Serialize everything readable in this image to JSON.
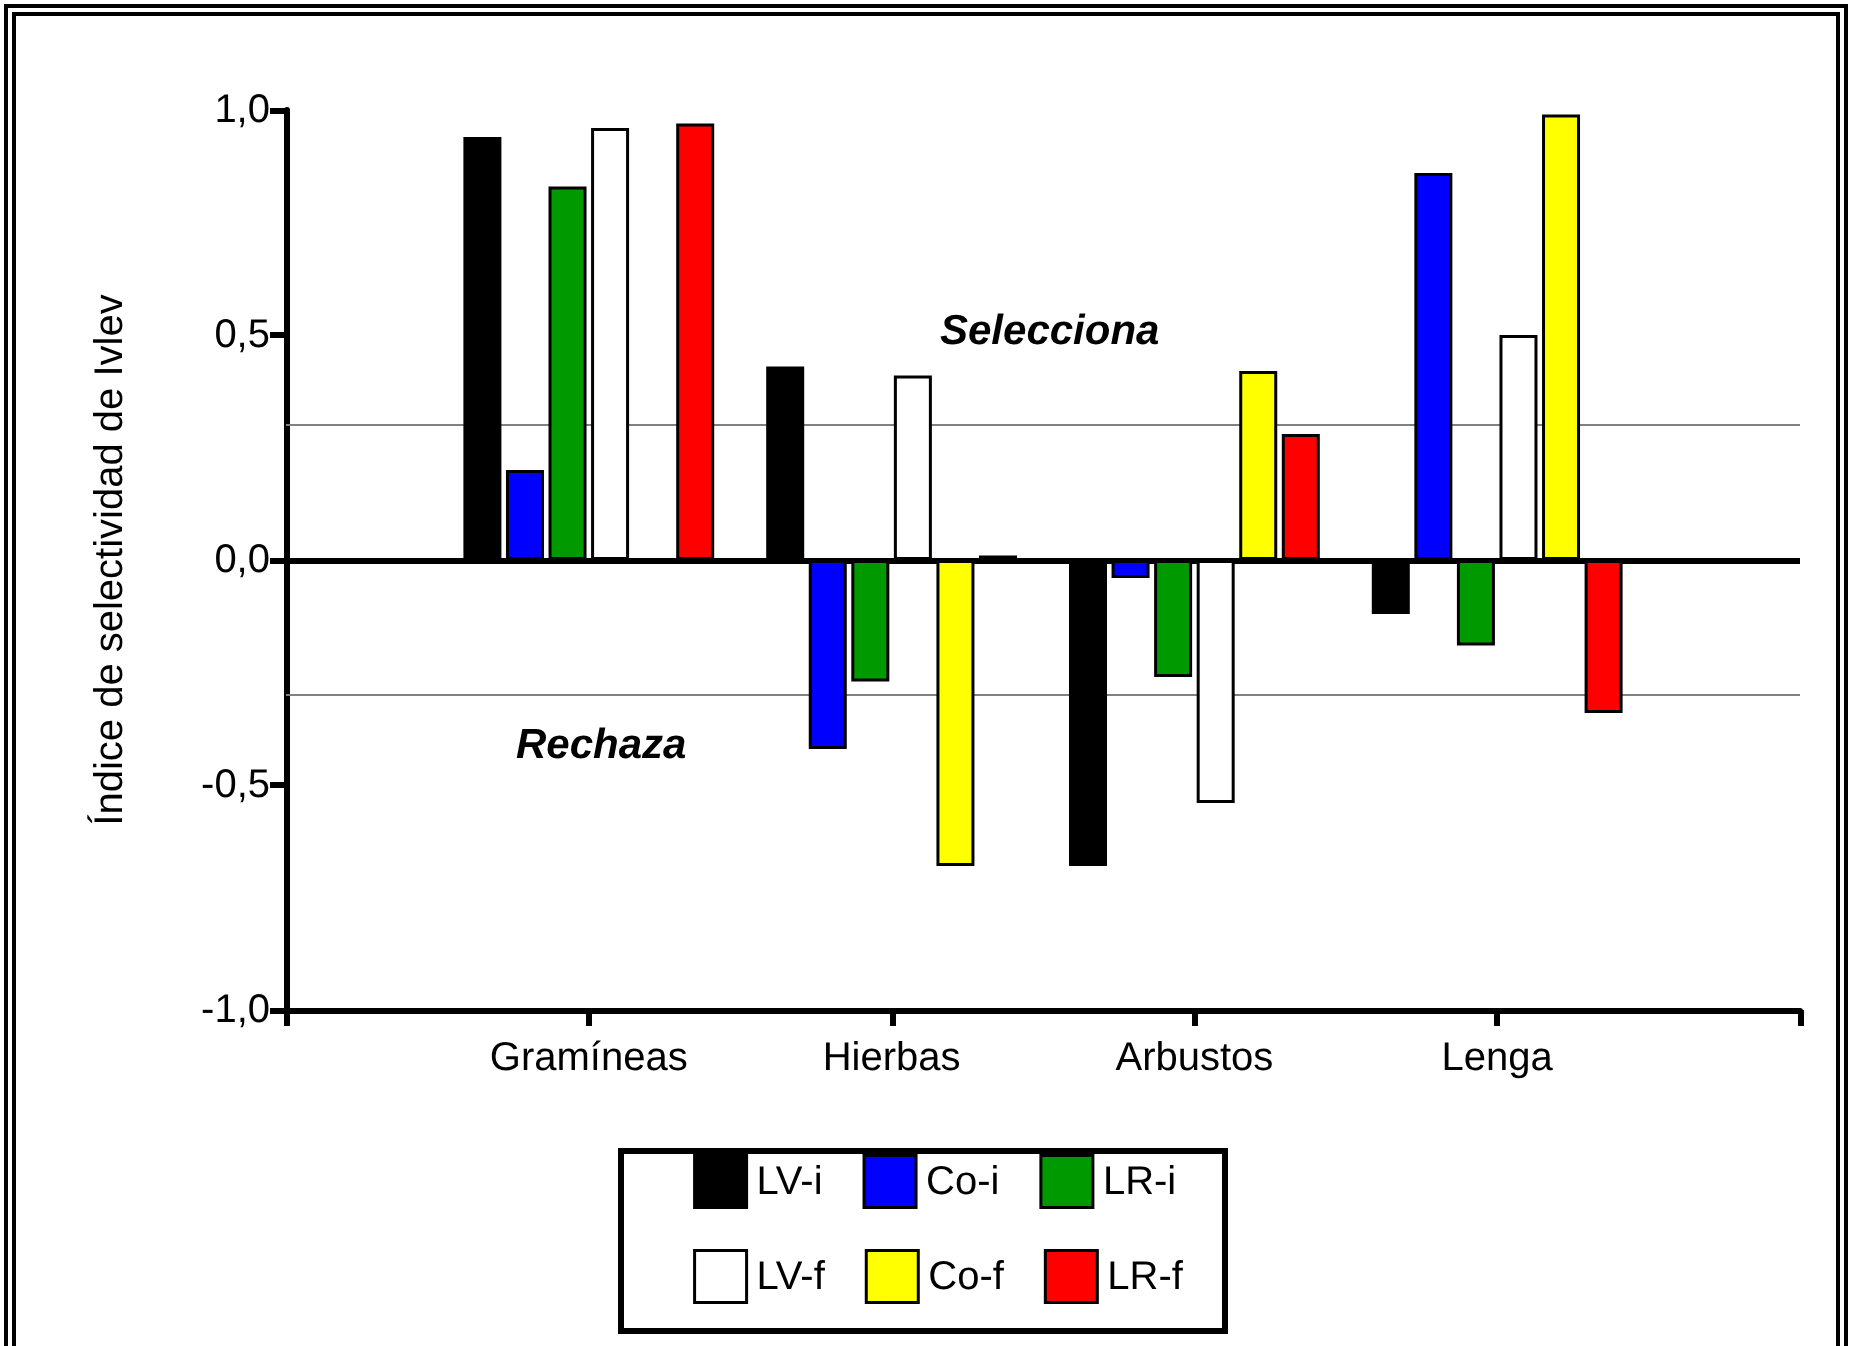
{
  "chart_data": {
    "type": "bar",
    "ylabel": "Índice de selectividad de Ivlev",
    "categories": [
      "Gramíneas",
      "Hierbas",
      "Arbustos",
      "Lenga"
    ],
    "series": [
      {
        "name": "LV-i",
        "color": "#000000",
        "values": [
          0.94,
          0.43,
          -0.68,
          -0.12
        ]
      },
      {
        "name": "Co-i",
        "color": "#0000ff",
        "values": [
          0.2,
          -0.42,
          -0.04,
          0.86
        ]
      },
      {
        "name": "LR-i",
        "color": "#009900",
        "values": [
          0.83,
          -0.27,
          -0.26,
          -0.19
        ]
      },
      {
        "name": "LV-f",
        "color": "#ffffff",
        "values": [
          0.96,
          0.41,
          -0.54,
          0.5
        ]
      },
      {
        "name": "Co-f",
        "color": "#ffff00",
        "values": [
          null,
          -0.68,
          0.42,
          0.99
        ]
      },
      {
        "name": "LR-f",
        "color": "#ff0000",
        "values": [
          0.97,
          0.01,
          0.28,
          -0.34
        ]
      }
    ],
    "ylim": [
      -1,
      1
    ],
    "yticks": [
      {
        "value": -1,
        "label": "-1,0"
      },
      {
        "value": -0.5,
        "label": "-0,5"
      },
      {
        "value": 0,
        "label": "0,0"
      },
      {
        "value": 0.5,
        "label": "0,5"
      },
      {
        "value": 1,
        "label": "1,0"
      }
    ],
    "ref_lines": [
      {
        "axis": "y",
        "value": 0.3,
        "color": "#808080"
      },
      {
        "axis": "y",
        "value": -0.3,
        "color": "#808080"
      },
      {
        "axis": "y",
        "value": 0,
        "color": "#000000"
      }
    ],
    "annotations": [
      "Selecciona",
      "Rechaza"
    ],
    "grid": false,
    "legend": "bottom"
  }
}
